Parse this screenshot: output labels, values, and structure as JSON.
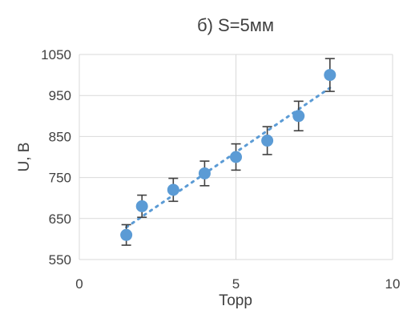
{
  "chart_data": {
    "type": "scatter",
    "title": "б) S=5мм",
    "xlabel": "Торр",
    "ylabel": "U, В",
    "xlim": [
      0,
      10
    ],
    "ylim": [
      550,
      1050
    ],
    "x_ticks": [
      0,
      5,
      10
    ],
    "y_ticks": [
      550,
      650,
      750,
      850,
      950,
      1050
    ],
    "grid": true,
    "marker_color": "#5b9bd5",
    "trend_color": "#5b9bd5",
    "trendline": {
      "type": "linear",
      "x_range": [
        1.5,
        8
      ]
    },
    "series": [
      {
        "x": [
          1.5,
          2,
          3,
          4,
          5,
          6,
          7,
          8
        ],
        "y": [
          610,
          680,
          720,
          760,
          800,
          840,
          900,
          1000
        ],
        "y_err": [
          25,
          27,
          28,
          30,
          32,
          34,
          36,
          40
        ]
      }
    ]
  }
}
